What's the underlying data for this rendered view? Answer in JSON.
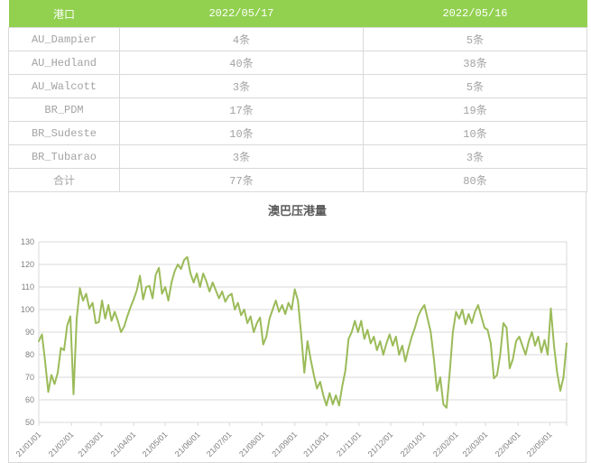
{
  "table": {
    "columns": [
      "港口",
      "2022/05/17",
      "2022/05/16"
    ],
    "rows": [
      [
        "AU_Dampier",
        "4条",
        "5条"
      ],
      [
        "AU_Hedland",
        "40条",
        "38条"
      ],
      [
        "AU_Walcott",
        "3条",
        "5条"
      ],
      [
        "BR_PDM",
        "17条",
        "19条"
      ],
      [
        "BR_Sudeste",
        "10条",
        "10条"
      ],
      [
        "BR_Tubarao",
        "3条",
        "3条"
      ],
      [
        "合计",
        "77条",
        "80条"
      ]
    ]
  },
  "chart_data": {
    "type": "line",
    "title": "澳巴压港量",
    "xlabel": "",
    "ylabel": "",
    "ylim": [
      50,
      130
    ],
    "y_ticks": [
      50,
      60,
      70,
      80,
      90,
      100,
      110,
      120,
      130
    ],
    "grid": "horizontal",
    "legend": "none",
    "x_tick_labels": [
      "21/01/01",
      "21/02/01",
      "21/03/01",
      "21/04/01",
      "21/05/01",
      "21/06/01",
      "21/07/01",
      "21/08/01",
      "21/09/01",
      "21/10/01",
      "21/11/01",
      "21/12/01",
      "22/01/01",
      "22/02/01",
      "22/03/01",
      "22/04/01",
      "22/05/01"
    ],
    "x_tick_day_offsets": [
      0,
      31,
      59,
      90,
      120,
      151,
      181,
      212,
      243,
      273,
      304,
      334,
      365,
      396,
      424,
      455,
      485
    ],
    "series": [
      {
        "name": "澳巴压港量",
        "color": "#9bbb59",
        "sampling": {
          "start_date": "21/01/01",
          "end_date": "22/05/17",
          "interval_days": 3,
          "total_days": 501
        },
        "values": [
          86,
          89,
          77,
          63.5,
          71,
          67,
          72,
          83,
          82,
          93,
          97,
          62.5,
          96,
          109.5,
          104,
          107,
          100.5,
          103,
          94,
          94.5,
          104,
          96,
          102,
          95,
          99,
          95,
          90,
          92.5,
          97,
          101,
          104.5,
          108.5,
          115,
          104.5,
          110,
          110.5,
          105,
          115.5,
          118.5,
          107,
          110,
          104,
          112,
          117,
          120,
          118,
          122,
          123.3,
          116,
          112,
          116,
          110,
          116,
          112.5,
          108,
          112,
          108.5,
          105,
          108,
          103.5,
          106,
          107,
          100,
          103,
          97.5,
          100,
          94,
          97,
          90,
          94,
          96.5,
          84.5,
          88,
          96,
          100,
          104,
          99,
          102,
          98,
          103,
          100,
          109,
          104,
          89.5,
          72,
          86,
          78,
          71,
          65,
          68,
          62,
          57.5,
          63,
          58,
          62,
          57.5,
          66,
          73,
          87,
          90,
          95,
          90,
          95,
          87,
          91,
          85,
          88,
          82,
          86,
          80,
          85,
          89,
          84,
          88,
          80,
          84,
          77,
          83,
          88,
          92,
          97,
          100,
          102,
          96,
          90,
          78,
          64,
          70,
          58,
          56.5,
          72,
          90,
          99,
          96,
          100,
          93.5,
          98,
          94,
          99,
          102,
          97,
          92,
          91,
          85,
          69.5,
          71,
          80,
          94,
          92,
          74,
          78,
          86,
          88,
          84,
          80,
          86,
          90,
          84,
          88,
          81,
          86.5,
          80,
          100.5,
          84,
          72,
          64,
          70,
          85
        ]
      }
    ]
  },
  "colors": {
    "header_bg": "#92d050",
    "header_text": "#ffffff",
    "table_text": "#a3a3a3",
    "border": "#d9d9d9",
    "line": "#9bbb59",
    "title_text": "#595959",
    "axis_text": "#7f7f7f"
  }
}
